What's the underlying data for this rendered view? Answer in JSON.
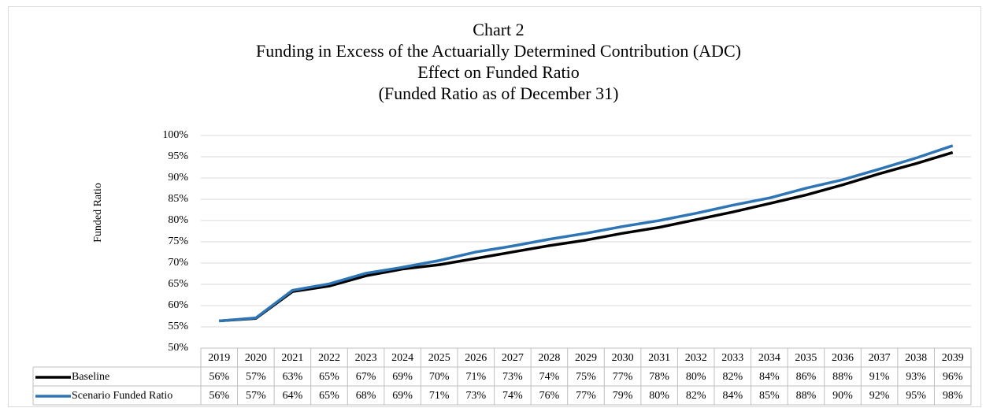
{
  "chart_data": {
    "type": "line",
    "title": [
      "Chart 2",
      "Funding in Excess of the Actuarially Determined Contribution (ADC)",
      "Effect on Funded Ratio",
      "(Funded Ratio as of December 31)"
    ],
    "y_label": "Funded Ratio",
    "categories": [
      "2019",
      "2020",
      "2021",
      "2022",
      "2023",
      "2024",
      "2025",
      "2026",
      "2027",
      "2028",
      "2029",
      "2030",
      "2031",
      "2032",
      "2033",
      "2034",
      "2035",
      "2036",
      "2037",
      "2038",
      "2039"
    ],
    "series": [
      {
        "name": "Baseline",
        "color": "#000000",
        "values": [
          56.4,
          57.0,
          63.3,
          64.6,
          67.0,
          68.6,
          69.6,
          71.1,
          72.6,
          74.1,
          75.4,
          77.0,
          78.4,
          80.2,
          82.0,
          84.0,
          86.0,
          88.4,
          91.0,
          93.4,
          96.0
        ],
        "value_labels": [
          "56%",
          "57%",
          "63%",
          "65%",
          "67%",
          "69%",
          "70%",
          "71%",
          "73%",
          "74%",
          "75%",
          "77%",
          "78%",
          "80%",
          "82%",
          "84%",
          "86%",
          "88%",
          "91%",
          "93%",
          "96%"
        ]
      },
      {
        "name": "Scenario Funded Ratio",
        "color": "#2e75b6",
        "values": [
          56.4,
          57.1,
          63.6,
          65.1,
          67.6,
          69.0,
          70.6,
          72.6,
          74.0,
          75.6,
          77.0,
          78.6,
          80.0,
          81.7,
          83.6,
          85.3,
          87.6,
          89.6,
          92.1,
          94.7,
          97.6
        ],
        "value_labels": [
          "56%",
          "57%",
          "64%",
          "65%",
          "68%",
          "69%",
          "71%",
          "73%",
          "74%",
          "76%",
          "77%",
          "79%",
          "80%",
          "82%",
          "84%",
          "85%",
          "88%",
          "90%",
          "92%",
          "95%",
          "98%"
        ]
      }
    ],
    "ylim": [
      50,
      100
    ],
    "yticks": [
      {
        "value": 50,
        "label": "50%"
      },
      {
        "value": 55,
        "label": "55%"
      },
      {
        "value": 60,
        "label": "60%"
      },
      {
        "value": 65,
        "label": "65%"
      },
      {
        "value": 70,
        "label": "70%"
      },
      {
        "value": 75,
        "label": "75%"
      },
      {
        "value": 80,
        "label": "80%"
      },
      {
        "value": 85,
        "label": "85%"
      },
      {
        "value": 90,
        "label": "90%"
      },
      {
        "value": 95,
        "label": "95%"
      },
      {
        "value": 100,
        "label": "100%"
      }
    ],
    "grid": true
  }
}
